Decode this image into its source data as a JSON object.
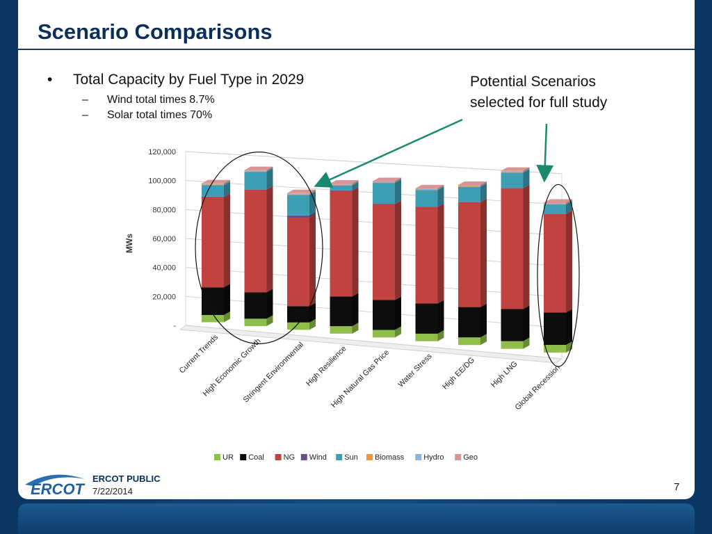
{
  "slide": {
    "title": "Scenario Comparisons",
    "bullet": "Total Capacity by Fuel Type in 2029",
    "bullet_marker": "•",
    "sub_dash": "–",
    "sub_bullets": [
      "Wind total times 8.7%",
      "Solar total times 70%"
    ],
    "callout_lines": [
      "Potential Scenarios",
      "selected for full study"
    ],
    "footer": {
      "label": "ERCOT PUBLIC",
      "date": "7/22/2014",
      "logo_text": "ERCOT"
    },
    "page_number": "7"
  },
  "chart_data": {
    "type": "bar",
    "stacked": true,
    "three_d": true,
    "ylabel": "MWs",
    "ylim": [
      0,
      120000
    ],
    "yticks": [
      "-",
      "20,000",
      "40,000",
      "60,000",
      "80,000",
      "100,000",
      "120,000"
    ],
    "grid": true,
    "legend_position": "bottom",
    "categories": [
      "Current Trends",
      "High Economic Growth",
      "Stringent Environmental",
      "High Resilience",
      "High Natural Gas Price",
      "Water Stress",
      "High EE/DG",
      "High LNG",
      "Global Recession"
    ],
    "series": [
      {
        "name": "UR",
        "color": "#8fbf4a",
        "values": [
          5000,
          5000,
          5000,
          5000,
          5000,
          5000,
          5000,
          5000,
          5000
        ]
      },
      {
        "name": "Coal",
        "color": "#0d0d0d",
        "values": [
          19000,
          18000,
          11000,
          20000,
          20000,
          20000,
          20000,
          21000,
          21000
        ]
      },
      {
        "name": "NG",
        "color": "#c0433f",
        "values": [
          62000,
          70000,
          60000,
          71000,
          64000,
          64000,
          69000,
          79000,
          64000
        ]
      },
      {
        "name": "Wind",
        "color": "#6a4c93",
        "values": [
          300,
          300,
          1500,
          300,
          300,
          300,
          300,
          300,
          300
        ]
      },
      {
        "name": "Sun",
        "color": "#3e9fb4",
        "values": [
          8000,
          12000,
          14000,
          3500,
          14000,
          11000,
          10000,
          10000,
          6000
        ]
      },
      {
        "name": "Biomass",
        "color": "#f39236",
        "values": [
          100,
          100,
          100,
          100,
          100,
          100,
          100,
          100,
          100
        ]
      },
      {
        "name": "Hydro",
        "color": "#8db3e2",
        "values": [
          500,
          500,
          500,
          500,
          500,
          500,
          500,
          500,
          500
        ]
      },
      {
        "name": "Geo",
        "color": "#d99594",
        "values": [
          500,
          500,
          500,
          500,
          500,
          500,
          500,
          500,
          500
        ]
      }
    ],
    "highlighted_categories": [
      "Current Trends",
      "High Economic Growth",
      "Stringent Environmental",
      "Global Recession"
    ]
  }
}
